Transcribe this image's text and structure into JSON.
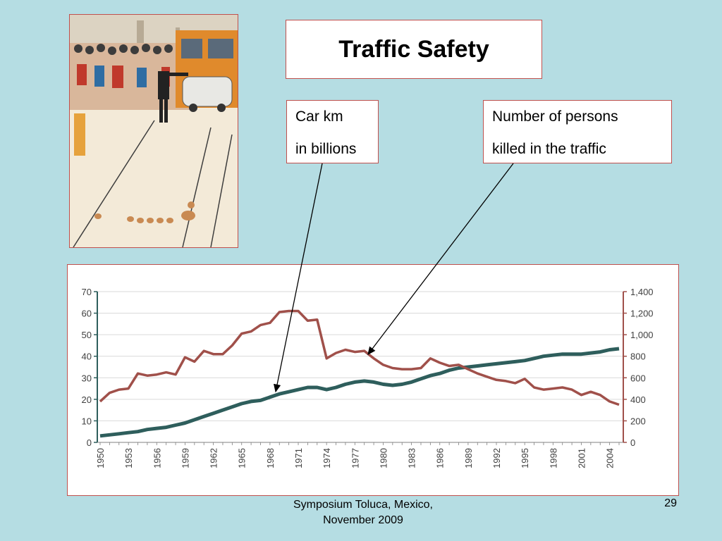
{
  "slide": {
    "title": "Traffic Safety",
    "callout_left": {
      "line1": "Car km",
      "line2": "in billions"
    },
    "callout_right": {
      "line1": "Number of persons",
      "line2": "killed in the traffic"
    },
    "footer_line1": "Symposium  Toluca, Mexico,",
    "footer_line2": "November 2009",
    "page_number": "29"
  },
  "colors": {
    "background": "#b5dde3",
    "border": "#c0504d",
    "car_km_line": "#2e5e5c",
    "killed_line": "#a0504a"
  },
  "chart_data": {
    "type": "line",
    "x": [
      1950,
      1951,
      1952,
      1953,
      1954,
      1955,
      1956,
      1957,
      1958,
      1959,
      1960,
      1961,
      1962,
      1963,
      1964,
      1965,
      1966,
      1967,
      1968,
      1969,
      1970,
      1971,
      1972,
      1973,
      1974,
      1975,
      1976,
      1977,
      1978,
      1979,
      1980,
      1981,
      1982,
      1983,
      1984,
      1985,
      1986,
      1987,
      1988,
      1989,
      1990,
      1991,
      1992,
      1993,
      1994,
      1995,
      1996,
      1997,
      1998,
      1999,
      2000,
      2001,
      2002,
      2003,
      2004,
      2005
    ],
    "x_tick_labels": [
      "1950",
      "1953",
      "1956",
      "1959",
      "1962",
      "1965",
      "1968",
      "1971",
      "1974",
      "1977",
      "1980",
      "1983",
      "1986",
      "1989",
      "1992",
      "1995",
      "1998",
      "2001",
      "2004"
    ],
    "left_axis": {
      "ylim": [
        0,
        70
      ],
      "ticks": [
        "70",
        "60",
        "50",
        "40",
        "30",
        "20",
        "10",
        "0"
      ]
    },
    "right_axis": {
      "ylim": [
        0,
        1400
      ],
      "ticks": [
        "1,400",
        "1,200",
        "1,000",
        "800",
        "600",
        "400",
        "200",
        "0"
      ]
    },
    "series": [
      {
        "axis": "left",
        "values": [
          3,
          3.5,
          4,
          4.5,
          5,
          6,
          6.5,
          7,
          8,
          9,
          10.5,
          12,
          13.5,
          15,
          16.5,
          18,
          19,
          19.5,
          21,
          22.5,
          23.5,
          24.5,
          25.5,
          25.5,
          24.5,
          25.5,
          27,
          28,
          28.5,
          28,
          27,
          26.5,
          27,
          28,
          29.5,
          31,
          32,
          33.5,
          34.5,
          35,
          35.5,
          36,
          36.5,
          37,
          37.5,
          38,
          39,
          40,
          40.5,
          41,
          41,
          41,
          41.5,
          42,
          43,
          43.5
        ]
      },
      {
        "axis": "right",
        "values": [
          380,
          460,
          490,
          500,
          640,
          620,
          630,
          650,
          630,
          790,
          750,
          850,
          820,
          820,
          900,
          1010,
          1030,
          1090,
          1110,
          1210,
          1220,
          1220,
          1130,
          1140,
          780,
          830,
          860,
          840,
          850,
          780,
          720,
          690,
          680,
          680,
          690,
          780,
          740,
          710,
          720,
          680,
          640,
          610,
          580,
          570,
          550,
          590,
          510,
          490,
          500,
          510,
          490,
          440,
          470,
          440,
          380,
          350
        ]
      }
    ],
    "grid": true
  }
}
